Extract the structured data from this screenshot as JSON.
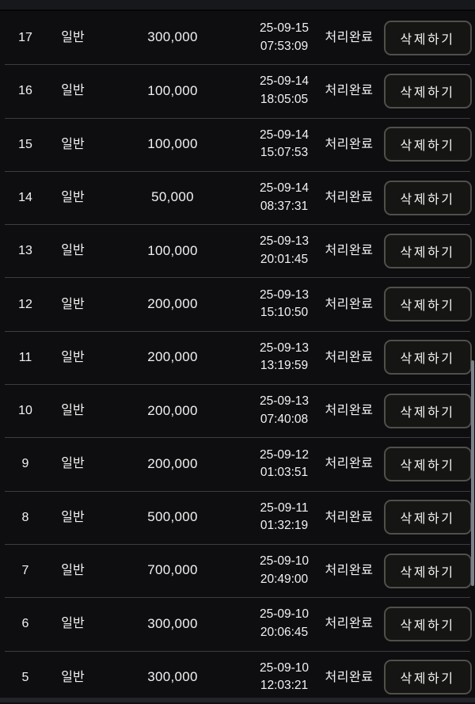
{
  "colors": {
    "page_background": "#0b0b0d",
    "row_background": "#0e0e10",
    "divider": "#3d3c3e",
    "button_border": "#504f4a",
    "button_background": "#151513",
    "text": "#f2f2f2",
    "scrollbar_thumb": "#7b828b",
    "header_strip": "#17181c",
    "bottom_strip": "#23242a"
  },
  "table": {
    "delete_button_label": "삭제하기",
    "rows": [
      {
        "no": "17",
        "type": "일반",
        "amount": "300,000",
        "date": "25-09-15",
        "time": "07:53:09",
        "status": "처리완료"
      },
      {
        "no": "16",
        "type": "일반",
        "amount": "100,000",
        "date": "25-09-14",
        "time": "18:05:05",
        "status": "처리완료"
      },
      {
        "no": "15",
        "type": "일반",
        "amount": "100,000",
        "date": "25-09-14",
        "time": "15:07:53",
        "status": "처리완료"
      },
      {
        "no": "14",
        "type": "일반",
        "amount": "50,000",
        "date": "25-09-14",
        "time": "08:37:31",
        "status": "처리완료"
      },
      {
        "no": "13",
        "type": "일반",
        "amount": "100,000",
        "date": "25-09-13",
        "time": "20:01:45",
        "status": "처리완료"
      },
      {
        "no": "12",
        "type": "일반",
        "amount": "200,000",
        "date": "25-09-13",
        "time": "15:10:50",
        "status": "처리완료"
      },
      {
        "no": "11",
        "type": "일반",
        "amount": "200,000",
        "date": "25-09-13",
        "time": "13:19:59",
        "status": "처리완료"
      },
      {
        "no": "10",
        "type": "일반",
        "amount": "200,000",
        "date": "25-09-13",
        "time": "07:40:08",
        "status": "처리완료"
      },
      {
        "no": "9",
        "type": "일반",
        "amount": "200,000",
        "date": "25-09-12",
        "time": "01:03:51",
        "status": "처리완료"
      },
      {
        "no": "8",
        "type": "일반",
        "amount": "500,000",
        "date": "25-09-11",
        "time": "01:32:19",
        "status": "처리완료"
      },
      {
        "no": "7",
        "type": "일반",
        "amount": "700,000",
        "date": "25-09-10",
        "time": "20:49:00",
        "status": "처리완료"
      },
      {
        "no": "6",
        "type": "일반",
        "amount": "300,000",
        "date": "25-09-10",
        "time": "20:06:45",
        "status": "처리완료"
      },
      {
        "no": "5",
        "type": "일반",
        "amount": "300,000",
        "date": "25-09-10",
        "time": "12:03:21",
        "status": "처리완료"
      }
    ]
  }
}
